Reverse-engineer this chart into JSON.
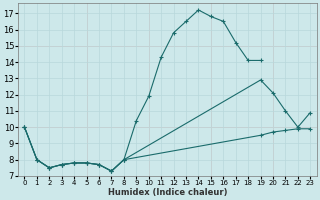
{
  "xlabel": "Humidex (Indice chaleur)",
  "xlim": [
    -0.5,
    23.5
  ],
  "ylim": [
    7,
    17.6
  ],
  "yticks": [
    7,
    8,
    9,
    10,
    11,
    12,
    13,
    14,
    15,
    16,
    17
  ],
  "xticks": [
    0,
    1,
    2,
    3,
    4,
    5,
    6,
    7,
    8,
    9,
    10,
    11,
    12,
    13,
    14,
    15,
    16,
    17,
    18,
    19,
    20,
    21,
    22,
    23
  ],
  "background_color": "#cde8ea",
  "line_color": "#1a6b6b",
  "grid_color": "#b8d8db",
  "pink_grid_color": "#e8b8b8",
  "line1": {
    "x": [
      0,
      1,
      2,
      3,
      4,
      5,
      6,
      7,
      8,
      9,
      10,
      11,
      12,
      13,
      14,
      15,
      16,
      17,
      18,
      19
    ],
    "y": [
      10,
      8,
      7.5,
      7.7,
      7.8,
      7.8,
      7.7,
      7.3,
      8.0,
      10.4,
      11.9,
      14.3,
      15.8,
      16.5,
      17.2,
      16.8,
      16.5,
      15.2,
      14.1,
      14.1
    ]
  },
  "line2": {
    "x": [
      0,
      1,
      2,
      3,
      4,
      5,
      6,
      7,
      8,
      19,
      20,
      21,
      22,
      23
    ],
    "y": [
      10,
      8,
      7.5,
      7.7,
      7.8,
      7.8,
      7.7,
      7.3,
      8.0,
      12.9,
      12.1,
      11.0,
      10.0,
      10.9
    ]
  },
  "line3": {
    "x": [
      0,
      1,
      2,
      3,
      4,
      5,
      6,
      7,
      8,
      19,
      20,
      21,
      22,
      23
    ],
    "y": [
      10,
      8,
      7.5,
      7.7,
      7.8,
      7.8,
      7.7,
      7.3,
      8.0,
      9.5,
      9.7,
      9.8,
      9.9,
      9.9
    ]
  }
}
